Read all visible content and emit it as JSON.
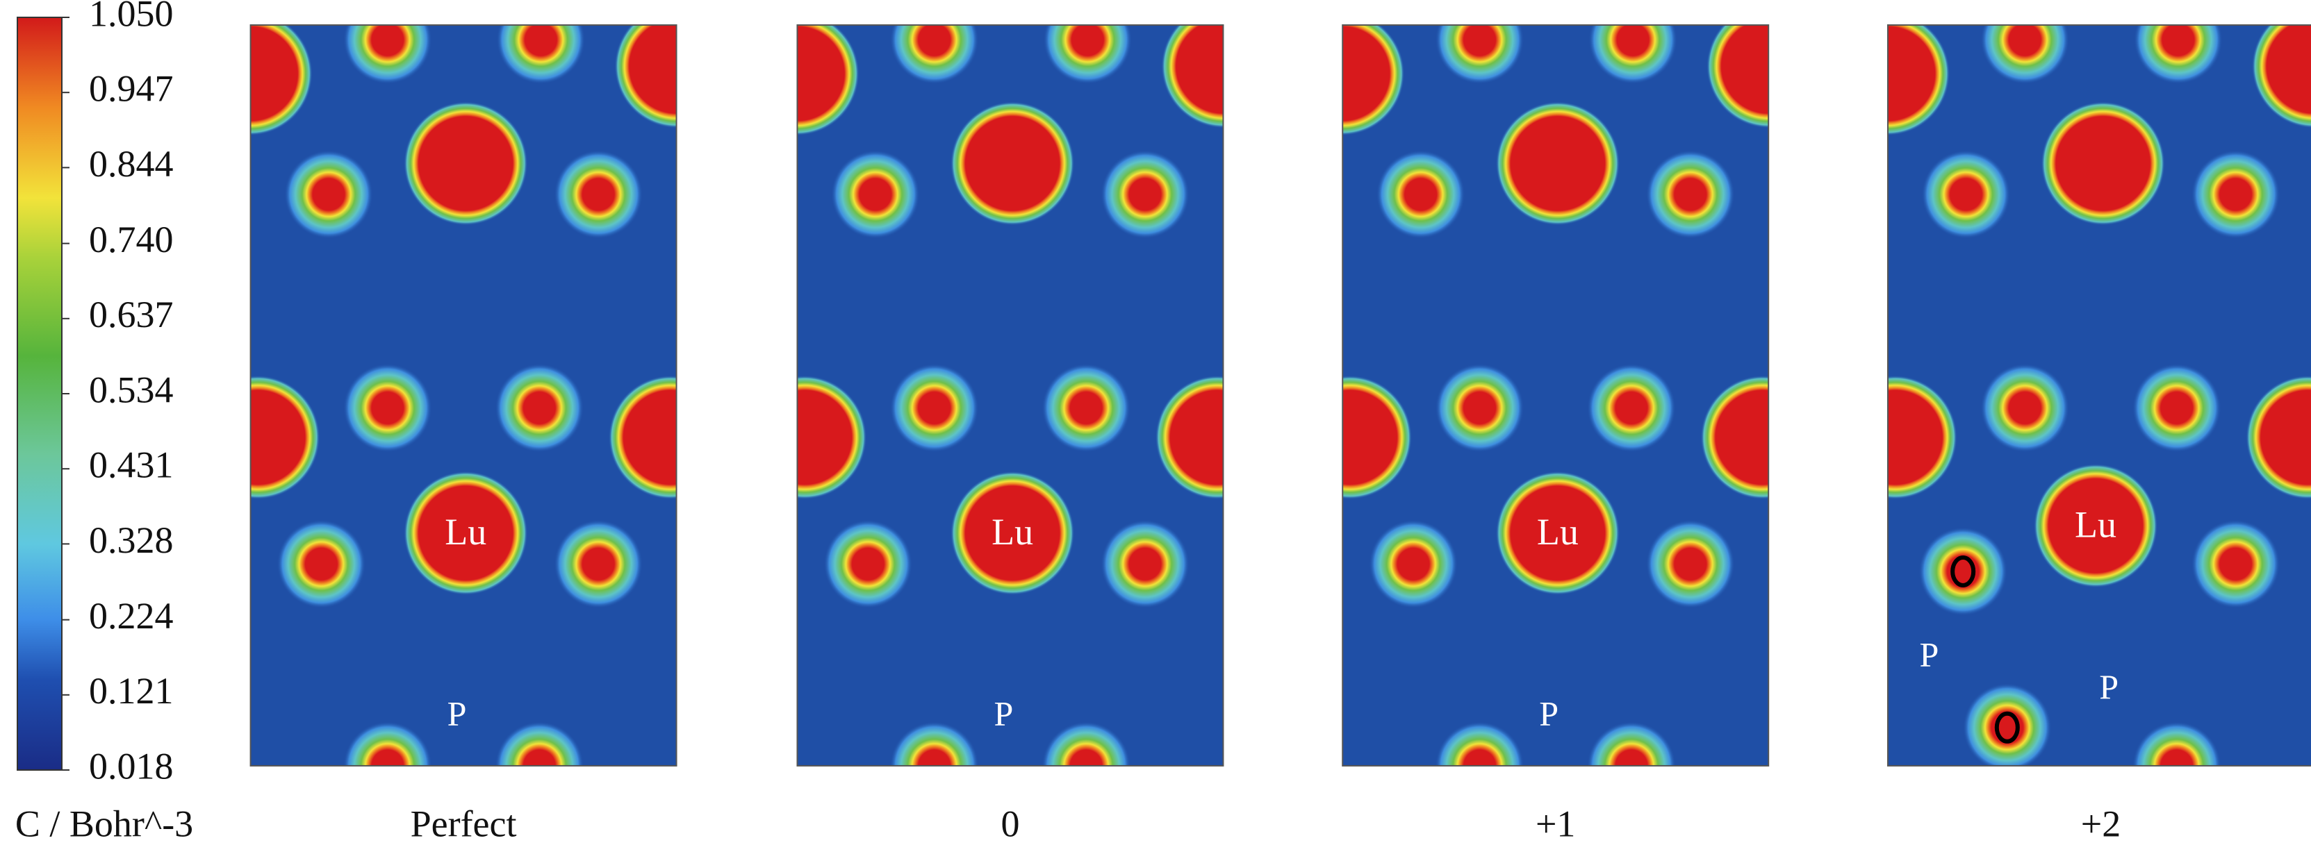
{
  "chart_data": {
    "type": "charge-density-map",
    "colorbar": {
      "label": "C / Bohr^-3",
      "clim": [
        0.018,
        1.05
      ],
      "ticks": [
        {
          "value": 1.05,
          "label": "1.050"
        },
        0.947,
        0.844,
        {
          "value": 0.74,
          "label": "0.740"
        },
        0.637,
        0.534,
        0.431,
        0.328,
        0.224,
        0.121,
        0.018
      ]
    },
    "panels": [
      {
        "title": "Perfect",
        "atom_labels": [
          "Lu",
          "P"
        ]
      },
      {
        "title": "0",
        "atom_labels": [
          "Lu",
          "P"
        ]
      },
      {
        "title": "+1",
        "atom_labels": [
          "Lu",
          "P"
        ]
      },
      {
        "title": "+2",
        "atom_labels": [
          "Lu",
          "O",
          "O",
          "P",
          "P"
        ]
      }
    ]
  }
}
